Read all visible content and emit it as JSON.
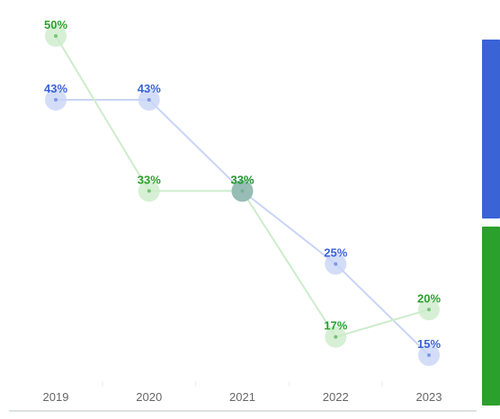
{
  "colors": {
    "series_a": "#3a63d6",
    "series_b": "#2ca02c",
    "series_a_light": "#c9d4f6",
    "series_b_light": "#cdeccb",
    "axis": "#b9c7c1",
    "tick_text": "#666666"
  },
  "chart_data": {
    "type": "line",
    "title": "",
    "xlabel": "",
    "ylabel": "",
    "categories": [
      "2019",
      "2020",
      "2021",
      "2022",
      "2023"
    ],
    "ylim": [
      10,
      55
    ],
    "grid": false,
    "legend_position": "right",
    "series": [
      {
        "values": [
          43,
          43,
          33,
          25,
          15
        ],
        "labels": [
          "43%",
          "43%",
          "33%",
          "25%",
          "15%"
        ],
        "color": "#3a63d6"
      },
      {
        "values": [
          50,
          33,
          33,
          17,
          20
        ],
        "labels": [
          "50%",
          "33%",
          "33%",
          "17%",
          "20%"
        ],
        "color": "#2ca02c"
      }
    ]
  }
}
